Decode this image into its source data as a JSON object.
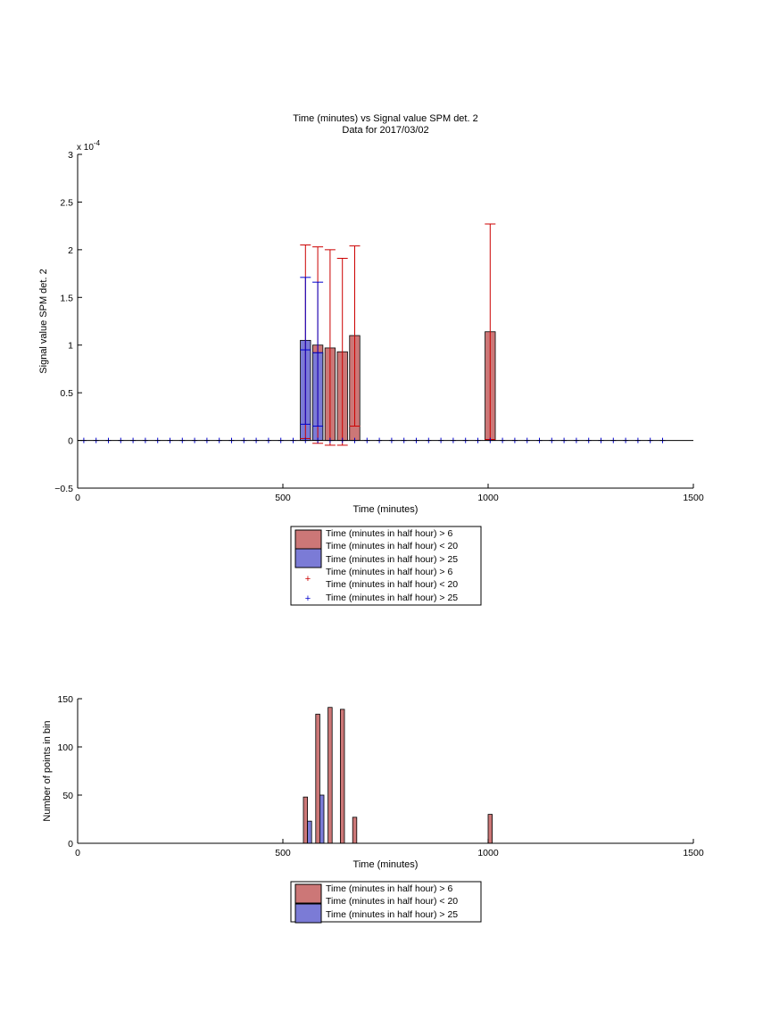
{
  "colors": {
    "red_fill": "#cc7777",
    "blue_fill": "#7b7bd6",
    "red_line": "#cc0000",
    "blue_line": "#0000cc"
  },
  "chart_data": [
    {
      "type": "bar",
      "title": "Time (minutes) vs Signal value SPM det. 2",
      "subtitle": "Data for 2017/03/02",
      "xlabel": "Time (minutes)",
      "ylabel": "Signal value SPM det. 2",
      "y_exponent_label": "x 10",
      "y_exponent": "-4",
      "xlim": [
        0,
        1500
      ],
      "ylim": [
        -0.5,
        3
      ],
      "x_ticks": [
        0,
        500,
        1000,
        1500
      ],
      "y_ticks": [
        -0.5,
        0,
        0.5,
        1,
        1.5,
        2,
        2.5,
        3
      ],
      "y_tick_labels": [
        "−0.5",
        "0",
        "0.5",
        "1",
        "1.5",
        "2",
        "2.5",
        "3"
      ],
      "grid": false,
      "legend_position": "below",
      "legend": [
        {
          "marker": "box",
          "color": "#cc7777",
          "lines": [
            "Time (minutes in half hour) > 6",
            "Time (minutes in half hour) < 20"
          ]
        },
        {
          "marker": "box",
          "color": "#7b7bd6",
          "lines": [
            "Time (minutes in half hour) > 25"
          ]
        },
        {
          "marker": "plus",
          "color": "#cc0000",
          "lines": [
            "Time (minutes in half hour) > 6",
            "Time (minutes in half hour) < 20"
          ]
        },
        {
          "marker": "plus",
          "color": "#0000cc",
          "lines": [
            "Time (minutes in half hour) > 25"
          ]
        }
      ],
      "bar_width": 25,
      "series": [
        {
          "name": "Time (minutes in half hour) > 6 / Time (minutes in half hour) < 20",
          "color": "#cc7777",
          "errcolor": "#cc0000",
          "bars": [
            {
              "x": 585,
              "y": 1.0,
              "lo": -0.03,
              "hi": 2.03
            },
            {
              "x": 615,
              "y": 0.97,
              "lo": -0.05,
              "hi": 2.0
            },
            {
              "x": 645,
              "y": 0.93,
              "lo": -0.05,
              "hi": 1.91
            },
            {
              "x": 675,
              "y": 1.1,
              "lo": 0.15,
              "hi": 2.04
            },
            {
              "x": 1005,
              "y": 1.14,
              "lo": 0.01,
              "hi": 2.27
            }
          ],
          "extra_whiskers": [
            {
              "x": 555,
              "lo": 0.02,
              "hi": 2.05
            }
          ]
        },
        {
          "name": "Time (minutes in half hour) > 25",
          "color": "#7b7bd6",
          "errcolor": "#0000cc",
          "bars": [
            {
              "x": 555,
              "y": 1.05,
              "lo": 0.17,
              "hi": 1.71
            },
            {
              "x": 585,
              "y": 0.92,
              "lo": 0.15,
              "hi": 1.66
            }
          ],
          "inner_marks": [
            {
              "x": 555,
              "y": 0.95
            },
            {
              "x": 585,
              "y": 0.92
            }
          ]
        }
      ],
      "baseline_markers": {
        "color": "#0000cc",
        "y": 0,
        "x_start": 15,
        "x_step": 30,
        "x_end": 1425
      }
    },
    {
      "type": "bar",
      "xlabel": "Time (minutes)",
      "ylabel": "Number of points in bin",
      "xlim": [
        0,
        1500
      ],
      "ylim": [
        0,
        150
      ],
      "x_ticks": [
        0,
        500,
        1000,
        1500
      ],
      "y_ticks": [
        0,
        50,
        100,
        150
      ],
      "grid": false,
      "legend_position": "below",
      "legend": [
        {
          "marker": "box",
          "color": "#cc7777",
          "lines": [
            "Time (minutes in half hour) > 6",
            "Time (minutes in half hour) < 20"
          ]
        },
        {
          "marker": "box",
          "color": "#7b7bd6",
          "lines": [
            "Time (minutes in half hour) > 25"
          ]
        }
      ],
      "bar_width": 10,
      "series": [
        {
          "name": "Time (minutes in half hour) > 6 / Time (minutes in half hour) < 20",
          "color": "#cc7777",
          "points": [
            {
              "x": 550,
              "y": 48
            },
            {
              "x": 580,
              "y": 134
            },
            {
              "x": 610,
              "y": 141
            },
            {
              "x": 640,
              "y": 139
            },
            {
              "x": 670,
              "y": 27
            },
            {
              "x": 1000,
              "y": 30
            }
          ]
        },
        {
          "name": "Time (minutes in half hour) > 25",
          "color": "#7b7bd6",
          "points": [
            {
              "x": 560,
              "y": 23
            },
            {
              "x": 590,
              "y": 50
            }
          ]
        }
      ]
    }
  ]
}
